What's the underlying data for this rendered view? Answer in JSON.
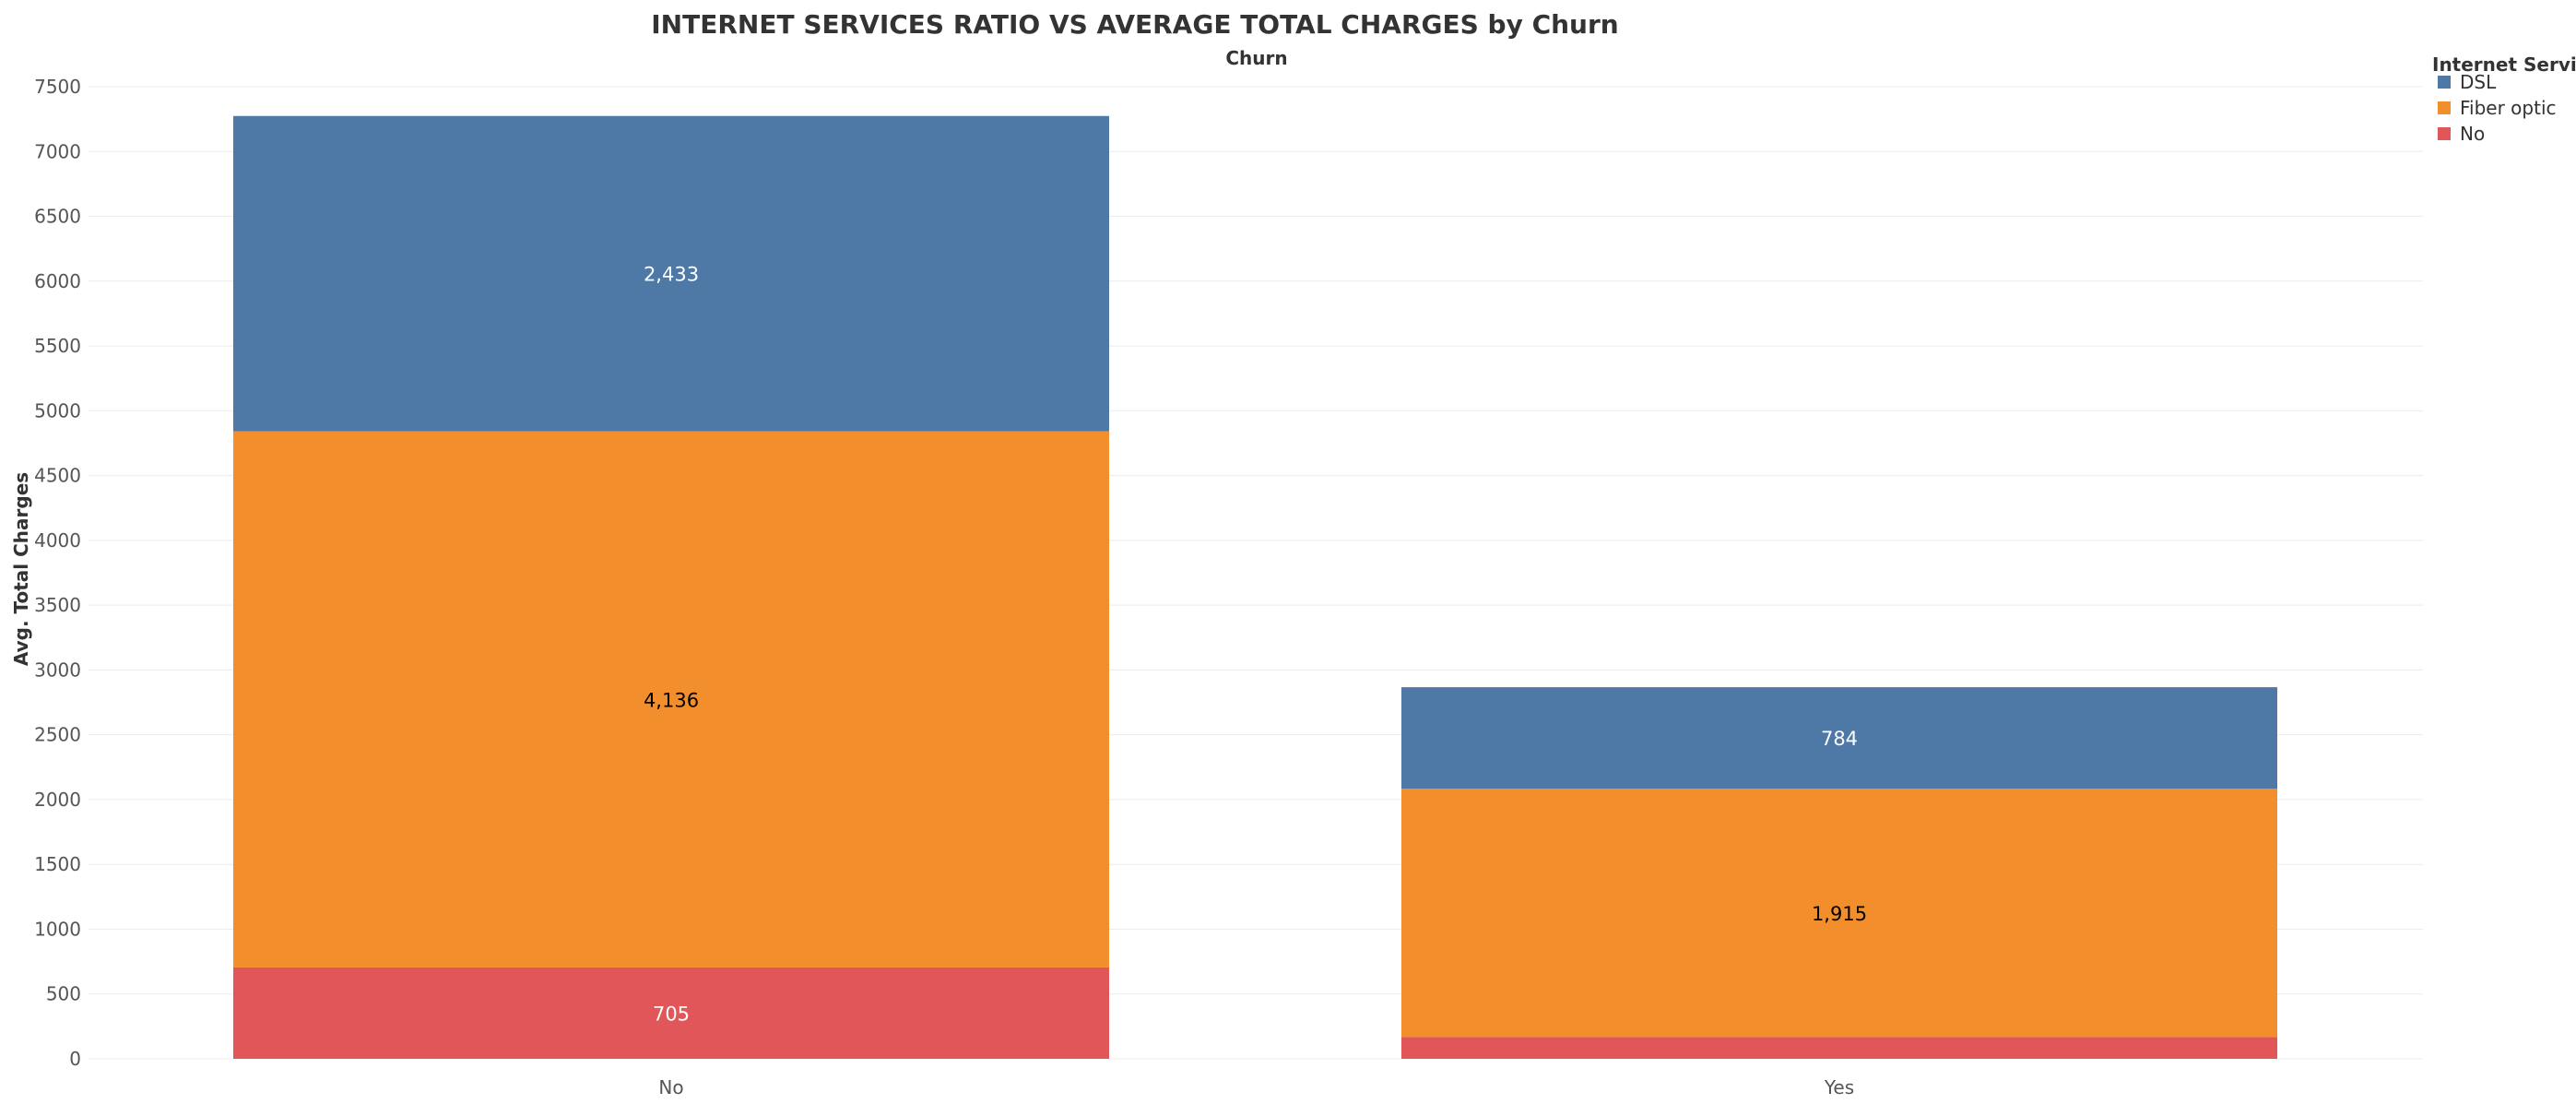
{
  "chart_data": {
    "type": "bar",
    "stacked": true,
    "title": "INTERNET SERVICES RATIO VS AVERAGE TOTAL CHARGES by Churn",
    "subtitle": "Churn",
    "xlabel": "",
    "ylabel": "Avg. Total Charges",
    "ylim": [
      0,
      7500
    ],
    "yticks": [
      0,
      500,
      1000,
      1500,
      2000,
      2500,
      3000,
      3500,
      4000,
      4500,
      5000,
      5500,
      6000,
      6500,
      7000,
      7500
    ],
    "categories": [
      "No",
      "Yes"
    ],
    "series": [
      {
        "name": "No",
        "color": "#e15759",
        "values": [
          705,
          168
        ],
        "labels": [
          "705",
          ""
        ],
        "label_color": "#ffffff"
      },
      {
        "name": "Fiber optic",
        "color": "#f28e2b",
        "values": [
          4136,
          1915
        ],
        "labels": [
          "4,136",
          "1,915"
        ],
        "label_color": "#000000"
      },
      {
        "name": "DSL",
        "color": "#4e79a7",
        "values": [
          2433,
          784
        ],
        "labels": [
          "2,433",
          "784"
        ],
        "label_color": "#ffffff"
      }
    ],
    "legend": {
      "title": "Internet Service",
      "position": "top-right",
      "items": [
        {
          "label": "DSL",
          "color": "#4e79a7"
        },
        {
          "label": "Fiber optic",
          "color": "#f28e2b"
        },
        {
          "label": "No",
          "color": "#e15759"
        }
      ]
    },
    "grid": true
  }
}
